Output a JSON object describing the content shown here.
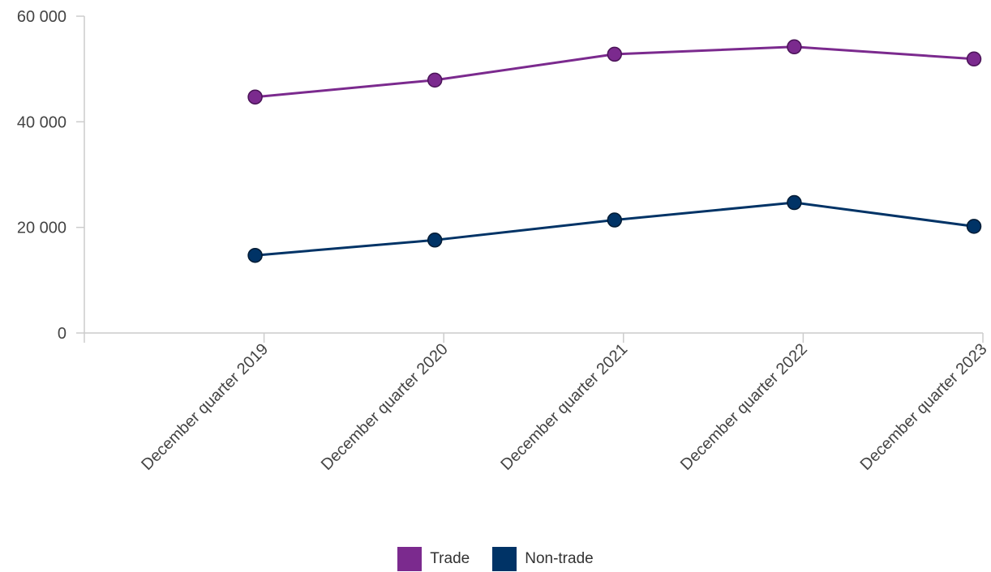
{
  "chart_data": {
    "type": "line",
    "categories": [
      "December quarter 2019",
      "December quarter 2020",
      "December quarter 2021",
      "December quarter 2022",
      "December quarter 2023"
    ],
    "series": [
      {
        "name": "Trade",
        "color": "#7b2a8e",
        "values": [
          44700,
          47900,
          52800,
          54200,
          51900
        ]
      },
      {
        "name": "Non-trade",
        "color": "#003366",
        "values": [
          14700,
          17600,
          21400,
          24700,
          20200
        ]
      }
    ],
    "yticks": [
      "0",
      "20 000",
      "40 000",
      "60 000"
    ],
    "ylim": [
      0,
      60000
    ],
    "grid": false,
    "legend_position": "bottom-center"
  }
}
